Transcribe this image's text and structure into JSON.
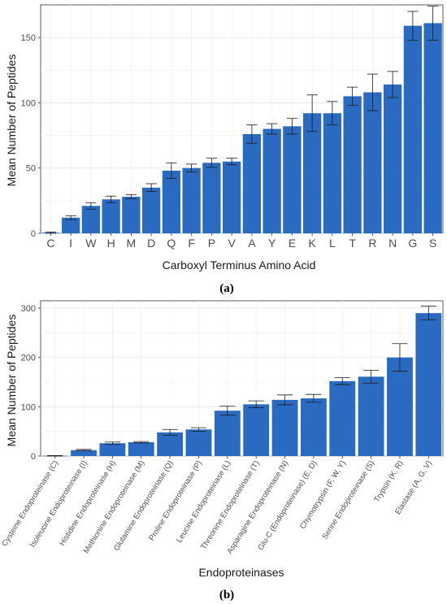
{
  "chart_data": [
    {
      "type": "bar",
      "panel_label": "(a)",
      "xlabel": "Carboxyl Terminus Amino Acid",
      "ylabel": "Mean Number of Peptides",
      "ylim": [
        0,
        175
      ],
      "yticks": [
        0,
        50,
        100,
        150
      ],
      "grid": true,
      "bar_color": "#2a6ac0",
      "categories": [
        "C",
        "I",
        "W",
        "H",
        "M",
        "D",
        "Q",
        "F",
        "P",
        "V",
        "A",
        "Y",
        "E",
        "K",
        "L",
        "T",
        "R",
        "N",
        "G",
        "S"
      ],
      "values": [
        0.5,
        12,
        21,
        26,
        28,
        35,
        48,
        50,
        54,
        55,
        76,
        80,
        82,
        92,
        92,
        105,
        108,
        114,
        159,
        161
      ],
      "error": [
        0.5,
        1.5,
        2.5,
        2.5,
        1.5,
        3,
        6,
        3,
        3.5,
        2.5,
        7,
        4,
        6,
        14,
        9,
        7,
        14,
        10,
        11,
        13
      ]
    },
    {
      "type": "bar",
      "panel_label": "(b)",
      "xlabel": "Endoproteinases",
      "ylabel": "Mean Number of Peptides",
      "ylim": [
        0,
        315
      ],
      "yticks": [
        0,
        100,
        200,
        300
      ],
      "grid": true,
      "bar_color": "#2a6ac0",
      "categories": [
        "Cysteine Endoproteinase (C)",
        "Isoleucine Endoproteinase (I)",
        "Histidine Endoproteinase (H)",
        "Methionine Endoproteinase (M)",
        "Glutamine Endoproteinase (Q)",
        "Proline Endoproteinase (P)",
        "Leucine Endoproteinase (L)",
        "Threonine Endoproteinase (T)",
        "Asparagine Endoproteinase (N)",
        "Glu-C (Endoproteinase) (E, D)",
        "Chymotrypsin (F, W, Y)",
        "Serine Endoproteinase (S)",
        "Trypsin (K, R)",
        "Elastase (A, G, V)"
      ],
      "values": [
        0.5,
        12,
        26,
        28,
        48,
        54,
        92,
        105,
        114,
        117,
        152,
        161,
        200,
        290
      ],
      "error": [
        0.5,
        1.5,
        2.5,
        1.5,
        6,
        3.5,
        9,
        7,
        10,
        8,
        7,
        13,
        28,
        14
      ]
    }
  ]
}
